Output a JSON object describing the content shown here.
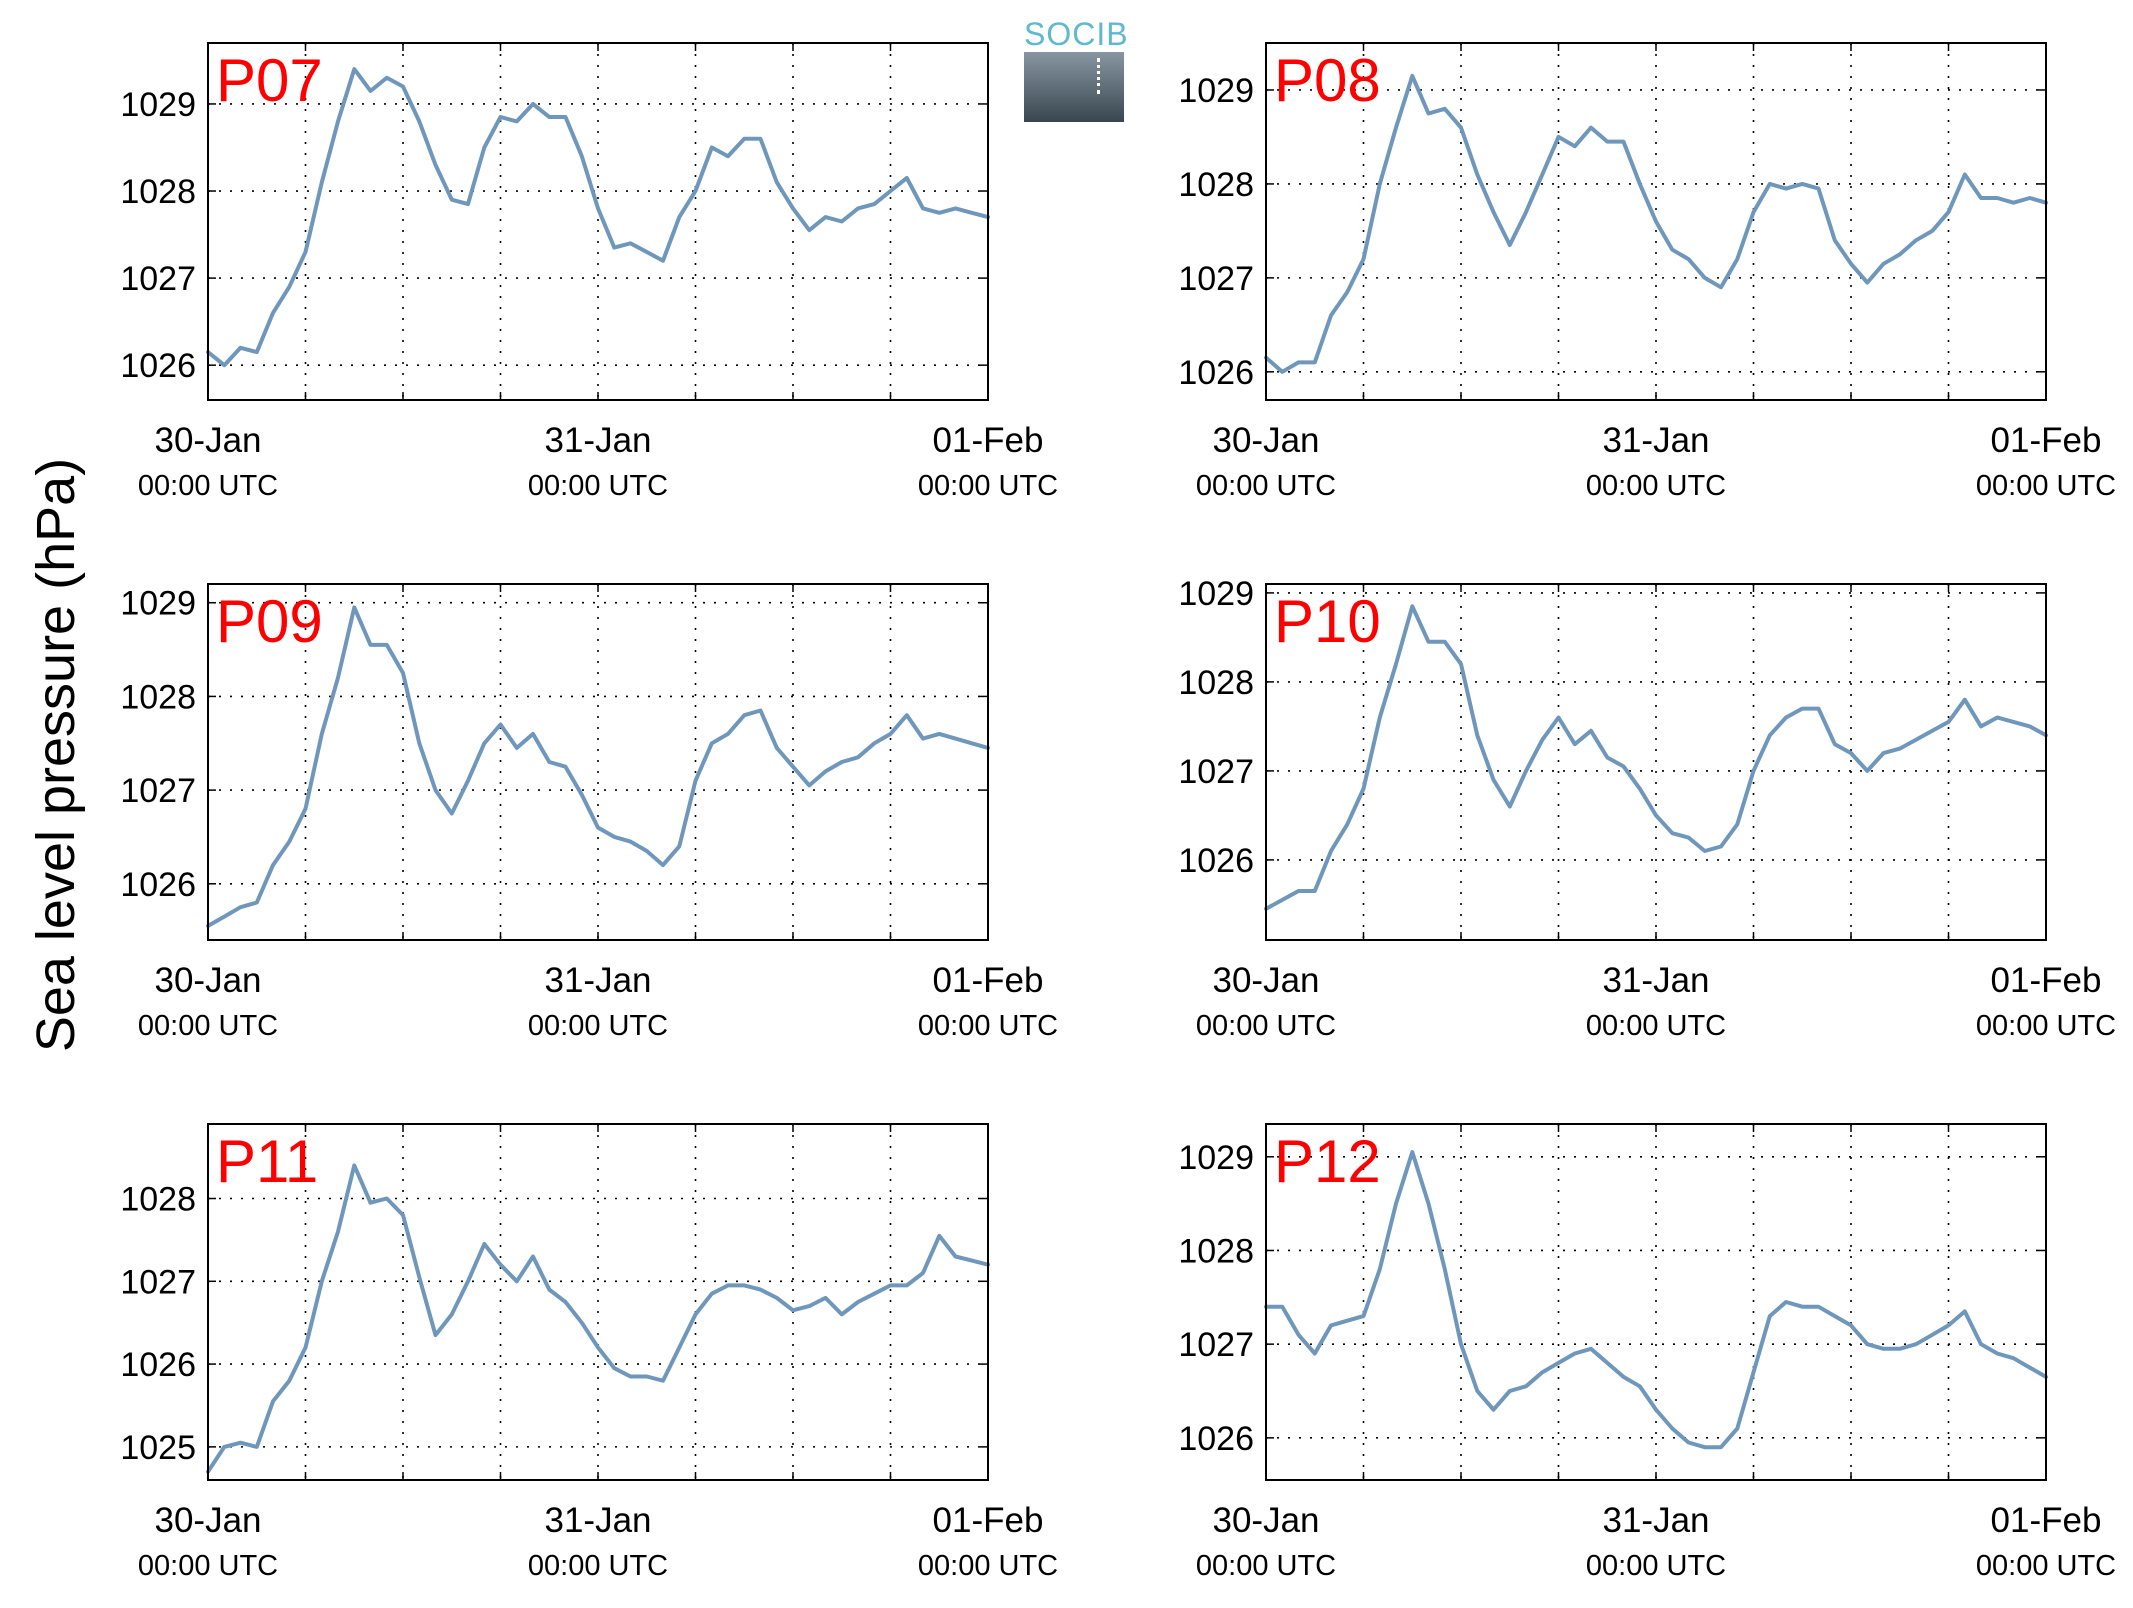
{
  "figure": {
    "ylabel": "Sea level pressure (hPa)",
    "logo_text": "SOCIB",
    "line_color": "#6f97bb",
    "label_color": "#ff0000"
  },
  "chart_data": [
    {
      "type": "line",
      "label": "P07",
      "x_range": [
        "30-Jan 00:00 UTC",
        "01-Feb 00:00 UTC"
      ],
      "x_ticks": [
        {
          "date": "30-Jan",
          "time": "00:00 UTC"
        },
        {
          "date": "31-Jan",
          "time": "00:00 UTC"
        },
        {
          "date": "01-Feb",
          "time": "00:00 UTC"
        }
      ],
      "minor_grid_hours": 6,
      "ylim": [
        1025.6,
        1029.7
      ],
      "yticks": [
        1026,
        1027,
        1028,
        1029
      ],
      "grid": true,
      "series": [
        {
          "x_hours": [
            0,
            1,
            2,
            3,
            4,
            5,
            6,
            7,
            8,
            9,
            10,
            11,
            12,
            13,
            14,
            15,
            16,
            17,
            18,
            19,
            20,
            21,
            22,
            23,
            24,
            25,
            26,
            27,
            28,
            29,
            30,
            31,
            32,
            33,
            34,
            35,
            36,
            37,
            38,
            39,
            40,
            41,
            42,
            43,
            44,
            45,
            46,
            47,
            48
          ],
          "values": [
            1026.15,
            1026.0,
            1026.2,
            1026.15,
            1026.6,
            1026.9,
            1027.3,
            1028.1,
            1028.8,
            1029.4,
            1029.15,
            1029.3,
            1029.2,
            1028.8,
            1028.3,
            1027.9,
            1027.85,
            1028.5,
            1028.85,
            1028.8,
            1029.0,
            1028.85,
            1028.85,
            1028.4,
            1027.8,
            1027.35,
            1027.4,
            1027.3,
            1027.2,
            1027.7,
            1028.0,
            1028.5,
            1028.4,
            1028.6,
            1028.6,
            1028.1,
            1027.8,
            1027.55,
            1027.7,
            1027.65,
            1027.8,
            1027.85,
            1028.0,
            1028.15,
            1027.8,
            1027.75,
            1027.8,
            1027.75,
            1027.7
          ]
        }
      ]
    },
    {
      "type": "line",
      "label": "P08",
      "x_range": [
        "30-Jan 00:00 UTC",
        "01-Feb 00:00 UTC"
      ],
      "x_ticks": [
        {
          "date": "30-Jan",
          "time": "00:00 UTC"
        },
        {
          "date": "31-Jan",
          "time": "00:00 UTC"
        },
        {
          "date": "01-Feb",
          "time": "00:00 UTC"
        }
      ],
      "minor_grid_hours": 6,
      "ylim": [
        1025.7,
        1029.5
      ],
      "yticks": [
        1026,
        1027,
        1028,
        1029
      ],
      "grid": true,
      "series": [
        {
          "x_hours": [
            0,
            1,
            2,
            3,
            4,
            5,
            6,
            7,
            8,
            9,
            10,
            11,
            12,
            13,
            14,
            15,
            16,
            17,
            18,
            19,
            20,
            21,
            22,
            23,
            24,
            25,
            26,
            27,
            28,
            29,
            30,
            31,
            32,
            33,
            34,
            35,
            36,
            37,
            38,
            39,
            40,
            41,
            42,
            43,
            44,
            45,
            46,
            47,
            48
          ],
          "values": [
            1026.15,
            1026.0,
            1026.1,
            1026.1,
            1026.6,
            1026.85,
            1027.2,
            1028.0,
            1028.6,
            1029.15,
            1028.75,
            1028.8,
            1028.6,
            1028.1,
            1027.7,
            1027.35,
            1027.7,
            1028.1,
            1028.5,
            1028.4,
            1028.6,
            1028.45,
            1028.45,
            1028.0,
            1027.6,
            1027.3,
            1027.2,
            1027.0,
            1026.9,
            1027.2,
            1027.7,
            1028.0,
            1027.95,
            1028.0,
            1027.95,
            1027.4,
            1027.15,
            1026.95,
            1027.15,
            1027.25,
            1027.4,
            1027.5,
            1027.7,
            1028.1,
            1027.85,
            1027.85,
            1027.8,
            1027.85,
            1027.8
          ]
        }
      ]
    },
    {
      "type": "line",
      "label": "P09",
      "x_range": [
        "30-Jan 00:00 UTC",
        "01-Feb 00:00 UTC"
      ],
      "x_ticks": [
        {
          "date": "30-Jan",
          "time": "00:00 UTC"
        },
        {
          "date": "31-Jan",
          "time": "00:00 UTC"
        },
        {
          "date": "01-Feb",
          "time": "00:00 UTC"
        }
      ],
      "minor_grid_hours": 6,
      "ylim": [
        1025.4,
        1029.2
      ],
      "yticks": [
        1026,
        1027,
        1028,
        1029
      ],
      "grid": true,
      "series": [
        {
          "x_hours": [
            0,
            1,
            2,
            3,
            4,
            5,
            6,
            7,
            8,
            9,
            10,
            11,
            12,
            13,
            14,
            15,
            16,
            17,
            18,
            19,
            20,
            21,
            22,
            23,
            24,
            25,
            26,
            27,
            28,
            29,
            30,
            31,
            32,
            33,
            34,
            35,
            36,
            37,
            38,
            39,
            40,
            41,
            42,
            43,
            44,
            45,
            46,
            47,
            48
          ],
          "values": [
            1025.55,
            1025.65,
            1025.75,
            1025.8,
            1026.2,
            1026.45,
            1026.8,
            1027.6,
            1028.2,
            1028.95,
            1028.55,
            1028.55,
            1028.25,
            1027.5,
            1027.0,
            1026.75,
            1027.1,
            1027.5,
            1027.7,
            1027.45,
            1027.6,
            1027.3,
            1027.25,
            1026.95,
            1026.6,
            1026.5,
            1026.45,
            1026.35,
            1026.2,
            1026.4,
            1027.1,
            1027.5,
            1027.6,
            1027.8,
            1027.85,
            1027.45,
            1027.25,
            1027.05,
            1027.2,
            1027.3,
            1027.35,
            1027.5,
            1027.6,
            1027.8,
            1027.55,
            1027.6,
            1027.55,
            1027.5,
            1027.45
          ]
        }
      ]
    },
    {
      "type": "line",
      "label": "P10",
      "x_range": [
        "30-Jan 00:00 UTC",
        "01-Feb 00:00 UTC"
      ],
      "x_ticks": [
        {
          "date": "30-Jan",
          "time": "00:00 UTC"
        },
        {
          "date": "31-Jan",
          "time": "00:00 UTC"
        },
        {
          "date": "01-Feb",
          "time": "00:00 UTC"
        }
      ],
      "minor_grid_hours": 6,
      "ylim": [
        1025.1,
        1029.1
      ],
      "yticks": [
        1026,
        1027,
        1028,
        1029
      ],
      "grid": true,
      "series": [
        {
          "x_hours": [
            0,
            1,
            2,
            3,
            4,
            5,
            6,
            7,
            8,
            9,
            10,
            11,
            12,
            13,
            14,
            15,
            16,
            17,
            18,
            19,
            20,
            21,
            22,
            23,
            24,
            25,
            26,
            27,
            28,
            29,
            30,
            31,
            32,
            33,
            34,
            35,
            36,
            37,
            38,
            39,
            40,
            41,
            42,
            43,
            44,
            45,
            46,
            47,
            48
          ],
          "values": [
            1025.45,
            1025.55,
            1025.65,
            1025.65,
            1026.1,
            1026.4,
            1026.8,
            1027.6,
            1028.2,
            1028.85,
            1028.45,
            1028.45,
            1028.2,
            1027.4,
            1026.9,
            1026.6,
            1027.0,
            1027.35,
            1027.6,
            1027.3,
            1027.45,
            1027.15,
            1027.05,
            1026.8,
            1026.5,
            1026.3,
            1026.25,
            1026.1,
            1026.15,
            1026.4,
            1027.0,
            1027.4,
            1027.6,
            1027.7,
            1027.7,
            1027.3,
            1027.2,
            1027.0,
            1027.2,
            1027.25,
            1027.35,
            1027.45,
            1027.55,
            1027.8,
            1027.5,
            1027.6,
            1027.55,
            1027.5,
            1027.4
          ]
        }
      ]
    },
    {
      "type": "line",
      "label": "P11",
      "x_range": [
        "30-Jan 00:00 UTC",
        "01-Feb 00:00 UTC"
      ],
      "x_ticks": [
        {
          "date": "30-Jan",
          "time": "00:00 UTC"
        },
        {
          "date": "31-Jan",
          "time": "00:00 UTC"
        },
        {
          "date": "01-Feb",
          "time": "00:00 UTC"
        }
      ],
      "minor_grid_hours": 6,
      "ylim": [
        1024.6,
        1028.9
      ],
      "yticks": [
        1025,
        1026,
        1027,
        1028
      ],
      "grid": true,
      "series": [
        {
          "x_hours": [
            0,
            1,
            2,
            3,
            4,
            5,
            6,
            7,
            8,
            9,
            10,
            11,
            12,
            13,
            14,
            15,
            16,
            17,
            18,
            19,
            20,
            21,
            22,
            23,
            24,
            25,
            26,
            27,
            28,
            29,
            30,
            31,
            32,
            33,
            34,
            35,
            36,
            37,
            38,
            39,
            40,
            41,
            42,
            43,
            44,
            45,
            46,
            47,
            48
          ],
          "values": [
            1024.7,
            1025.0,
            1025.05,
            1025.0,
            1025.55,
            1025.8,
            1026.2,
            1027.0,
            1027.6,
            1028.4,
            1027.95,
            1028.0,
            1027.8,
            1027.05,
            1026.35,
            1026.6,
            1027.0,
            1027.45,
            1027.2,
            1027.0,
            1027.3,
            1026.9,
            1026.75,
            1026.5,
            1026.2,
            1025.95,
            1025.85,
            1025.85,
            1025.8,
            1026.2,
            1026.6,
            1026.85,
            1026.95,
            1026.95,
            1026.9,
            1026.8,
            1026.65,
            1026.7,
            1026.8,
            1026.6,
            1026.75,
            1026.85,
            1026.95,
            1026.95,
            1027.1,
            1027.55,
            1027.3,
            1027.25,
            1027.2
          ]
        }
      ]
    },
    {
      "type": "line",
      "label": "P12",
      "x_range": [
        "30-Jan 00:00 UTC",
        "01-Feb 00:00 UTC"
      ],
      "x_ticks": [
        {
          "date": "30-Jan",
          "time": "00:00 UTC"
        },
        {
          "date": "31-Jan",
          "time": "00:00 UTC"
        },
        {
          "date": "01-Feb",
          "time": "00:00 UTC"
        }
      ],
      "minor_grid_hours": 6,
      "ylim": [
        1025.55,
        1029.35
      ],
      "yticks": [
        1026,
        1027,
        1028,
        1029
      ],
      "grid": true,
      "series": [
        {
          "x_hours": [
            0,
            1,
            2,
            3,
            4,
            5,
            6,
            7,
            8,
            9,
            10,
            11,
            12,
            13,
            14,
            15,
            16,
            17,
            18,
            19,
            20,
            21,
            22,
            23,
            24,
            25,
            26,
            27,
            28,
            29,
            30,
            31,
            32,
            33,
            34,
            35,
            36,
            37,
            38,
            39,
            40,
            41,
            42,
            43,
            44,
            45,
            46,
            47,
            48
          ],
          "values": [
            1027.4,
            1027.4,
            1027.1,
            1026.9,
            1027.2,
            1027.25,
            1027.3,
            1027.8,
            1028.5,
            1029.05,
            1028.5,
            1027.8,
            1027.0,
            1026.5,
            1026.3,
            1026.5,
            1026.55,
            1026.7,
            1026.8,
            1026.9,
            1026.95,
            1026.8,
            1026.65,
            1026.55,
            1026.3,
            1026.1,
            1025.95,
            1025.9,
            1025.9,
            1026.1,
            1026.7,
            1027.3,
            1027.45,
            1027.4,
            1027.4,
            1027.3,
            1027.2,
            1027.0,
            1026.95,
            1026.95,
            1027.0,
            1027.1,
            1027.2,
            1027.35,
            1027.0,
            1026.9,
            1026.85,
            1026.75,
            1026.65
          ]
        }
      ]
    }
  ]
}
